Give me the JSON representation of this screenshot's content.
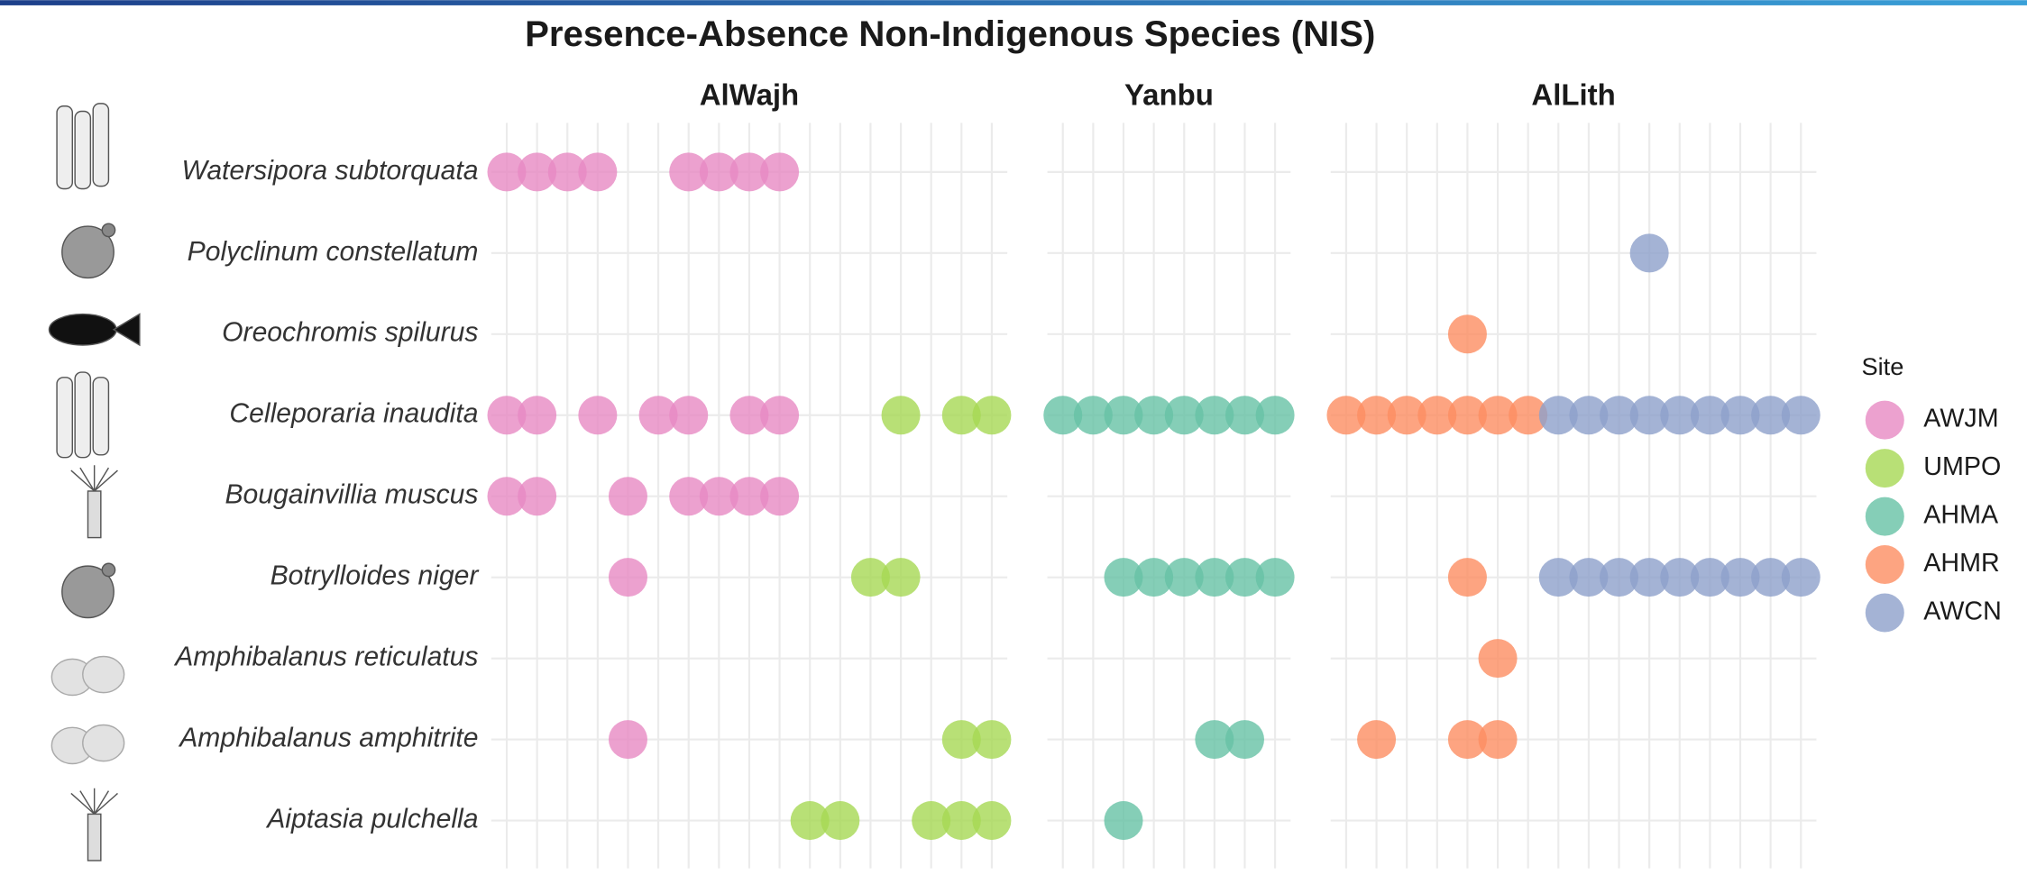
{
  "chart_data": {
    "type": "dot",
    "title": "Presence-Absence Non-Indigenous Species (NIS)",
    "legend_title": "Site",
    "legend_position": "right",
    "grid": true,
    "series": [
      {
        "name": "AWJM",
        "color": "#e78ac3"
      },
      {
        "name": "UMPO",
        "color": "#a6d854"
      },
      {
        "name": "AHMA",
        "color": "#66c2a5"
      },
      {
        "name": "AHMR",
        "color": "#fc8d62"
      },
      {
        "name": "AWCN",
        "color": "#8da0cb"
      }
    ],
    "y": [
      "Watersipora subtorquata",
      "Polyclinum constellatum",
      "Oreochromis spilurus",
      "Celleporaria inaudita",
      "Bougainvillia muscus",
      "Botrylloides niger",
      "Amphibalanus reticulatus",
      "Amphibalanus amphitrite",
      "Aiptasia pulchella"
    ],
    "facets": [
      {
        "title": "AlWajh",
        "x": [
          null,
          null,
          null,
          null,
          null,
          null,
          null,
          null,
          null,
          null,
          null,
          null,
          null,
          null,
          null,
          null,
          null
        ],
        "presence": [
          [
            "AWJM",
            "AWJM",
            "AWJM",
            "AWJM",
            null,
            null,
            "AWJM",
            "AWJM",
            "AWJM",
            "AWJM",
            null,
            null,
            null,
            null,
            null,
            null,
            null
          ],
          [
            null,
            null,
            null,
            null,
            null,
            null,
            null,
            null,
            null,
            null,
            null,
            null,
            null,
            null,
            null,
            null,
            null
          ],
          [
            null,
            null,
            null,
            null,
            null,
            null,
            null,
            null,
            null,
            null,
            null,
            null,
            null,
            null,
            null,
            null,
            null
          ],
          [
            "AWJM",
            "AWJM",
            null,
            "AWJM",
            null,
            "AWJM",
            "AWJM",
            null,
            "AWJM",
            "AWJM",
            null,
            null,
            null,
            "UMPO",
            null,
            "UMPO",
            "UMPO"
          ],
          [
            "AWJM",
            "AWJM",
            null,
            null,
            "AWJM",
            null,
            "AWJM",
            "AWJM",
            "AWJM",
            "AWJM",
            null,
            null,
            null,
            null,
            null,
            null,
            null
          ],
          [
            null,
            null,
            null,
            null,
            "AWJM",
            null,
            null,
            null,
            null,
            null,
            null,
            null,
            "UMPO",
            "UMPO",
            null,
            null,
            null
          ],
          [
            null,
            null,
            null,
            null,
            null,
            null,
            null,
            null,
            null,
            null,
            null,
            null,
            null,
            null,
            null,
            null,
            null
          ],
          [
            null,
            null,
            null,
            null,
            "AWJM",
            null,
            null,
            null,
            null,
            null,
            null,
            null,
            null,
            null,
            null,
            "UMPO",
            "UMPO"
          ],
          [
            null,
            null,
            null,
            null,
            null,
            null,
            null,
            null,
            null,
            null,
            "UMPO",
            "UMPO",
            null,
            null,
            "UMPO",
            "UMPO",
            "UMPO"
          ]
        ]
      },
      {
        "title": "Yanbu",
        "x": [
          null,
          null,
          null,
          null,
          null,
          null,
          null,
          null
        ],
        "presence": [
          [
            null,
            null,
            null,
            null,
            null,
            null,
            null,
            null
          ],
          [
            null,
            null,
            null,
            null,
            null,
            null,
            null,
            null
          ],
          [
            null,
            null,
            null,
            null,
            null,
            null,
            null,
            null
          ],
          [
            "AHMA",
            "AHMA",
            "AHMA",
            "AHMA",
            "AHMA",
            "AHMA",
            "AHMA",
            "AHMA"
          ],
          [
            null,
            null,
            null,
            null,
            null,
            null,
            null,
            null
          ],
          [
            null,
            null,
            "AHMA",
            "AHMA",
            "AHMA",
            "AHMA",
            "AHMA",
            "AHMA"
          ],
          [
            null,
            null,
            null,
            null,
            null,
            null,
            null,
            null
          ],
          [
            null,
            null,
            null,
            null,
            null,
            "AHMA",
            "AHMA",
            null
          ],
          [
            null,
            null,
            "AHMA",
            null,
            null,
            null,
            null,
            null
          ]
        ]
      },
      {
        "title": "AlLith",
        "x": [
          null,
          null,
          null,
          null,
          null,
          null,
          null,
          null,
          null,
          null,
          null,
          null,
          null,
          null,
          null,
          null
        ],
        "presence": [
          [
            null,
            null,
            null,
            null,
            null,
            null,
            null,
            null,
            null,
            null,
            null,
            null,
            null,
            null,
            null,
            null
          ],
          [
            null,
            null,
            null,
            null,
            null,
            null,
            null,
            null,
            null,
            null,
            "AWCN",
            null,
            null,
            null,
            null,
            null
          ],
          [
            null,
            null,
            null,
            null,
            "AHMR",
            null,
            null,
            null,
            null,
            null,
            null,
            null,
            null,
            null,
            null,
            null
          ],
          [
            "AHMR",
            "AHMR",
            "AHMR",
            "AHMR",
            "AHMR",
            "AHMR",
            "AHMR",
            "AWCN",
            "AWCN",
            "AWCN",
            "AWCN",
            "AWCN",
            "AWCN",
            "AWCN",
            "AWCN",
            "AWCN"
          ],
          [
            null,
            null,
            null,
            null,
            null,
            null,
            null,
            null,
            null,
            null,
            null,
            null,
            null,
            null,
            null,
            null
          ],
          [
            null,
            null,
            null,
            null,
            "AHMR",
            null,
            null,
            "AWCN",
            "AWCN",
            "AWCN",
            "AWCN",
            "AWCN",
            "AWCN",
            "AWCN",
            "AWCN",
            "AWCN"
          ],
          [
            null,
            null,
            null,
            null,
            null,
            "AHMR",
            null,
            null,
            null,
            null,
            null,
            null,
            null,
            null,
            null,
            null
          ],
          [
            null,
            "AHMR",
            null,
            null,
            "AHMR",
            "AHMR",
            null,
            null,
            null,
            null,
            null,
            null,
            null,
            null,
            null,
            null
          ],
          [
            null,
            null,
            null,
            null,
            null,
            null,
            null,
            null,
            null,
            null,
            null,
            null,
            null,
            null,
            null,
            null
          ]
        ]
      }
    ]
  }
}
